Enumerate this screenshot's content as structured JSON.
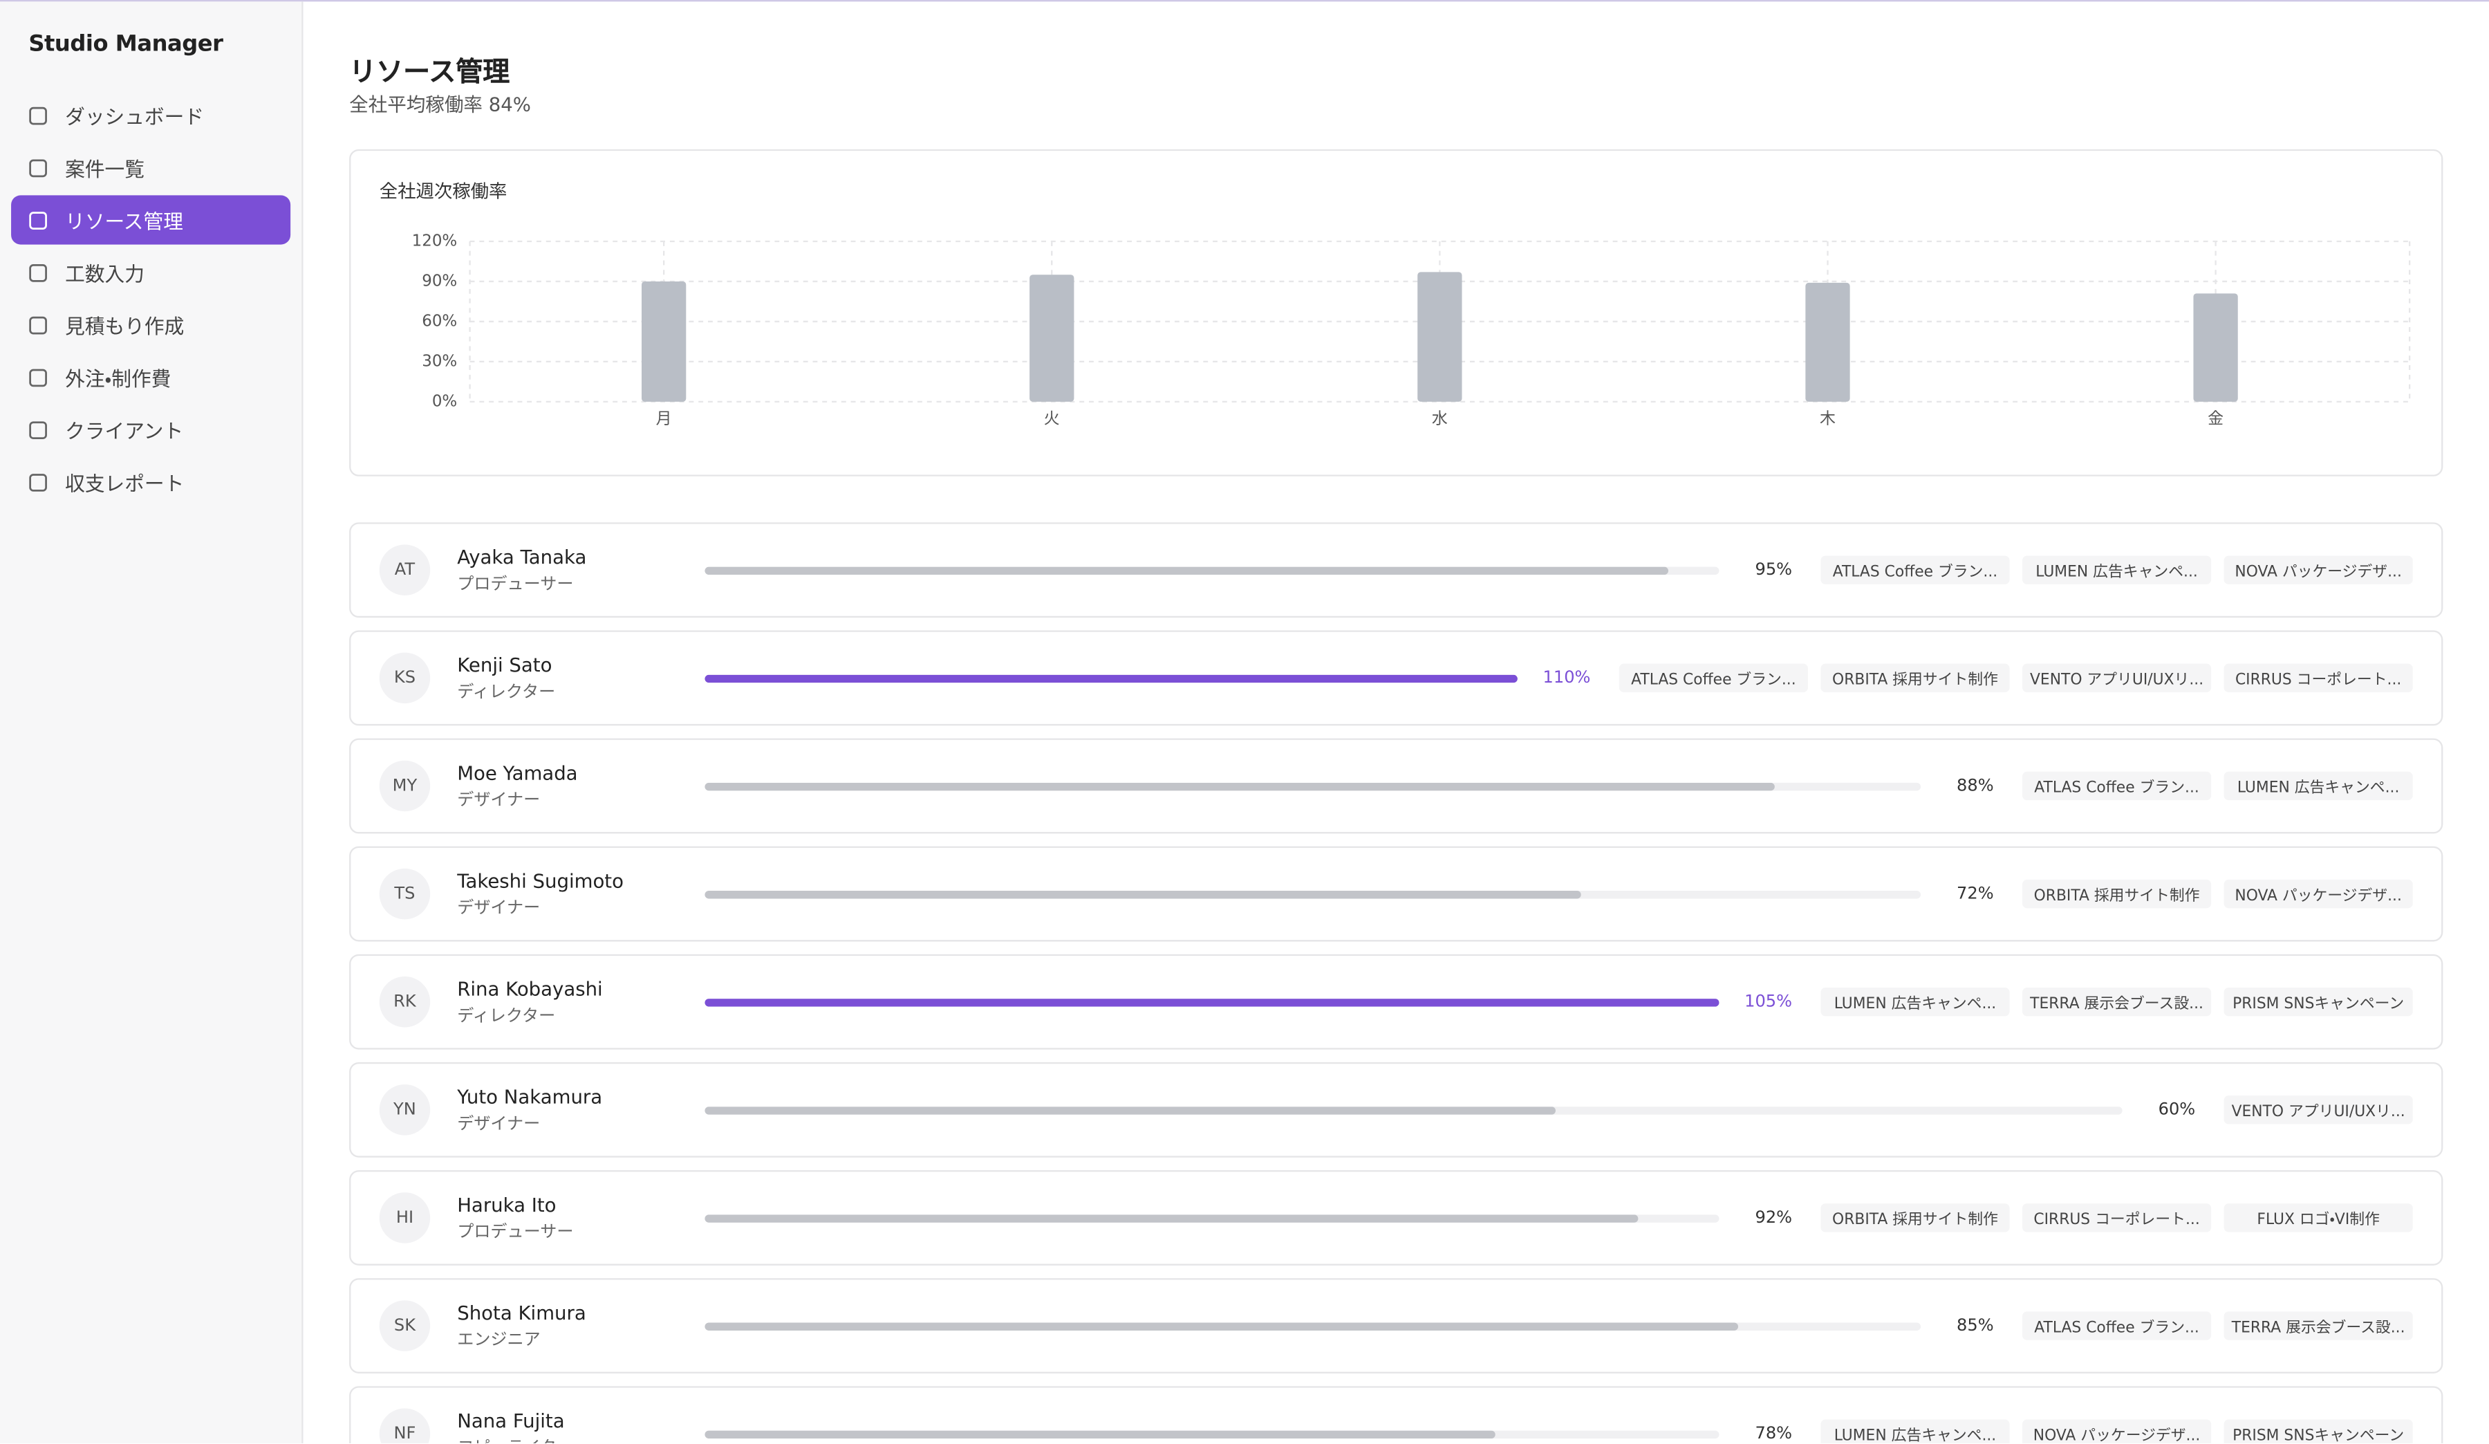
{
  "sidebar": {
    "app_title": "Studio Manager",
    "nav": [
      "ダッシュボード",
      "案件一覧",
      "リソース管理",
      "工数入力",
      "見積もり作成",
      "外注・制作費",
      "クライアント",
      "収支レポート"
    ],
    "active_nav": 2
  },
  "header": {
    "title": "リソース管理",
    "subtitle": "全社平均稼働率 84%"
  },
  "chart_data": {
    "type": "bar",
    "title": "全社週次稼働率",
    "categories": [
      "月",
      "火",
      "水",
      "木",
      "金"
    ],
    "values": [
      90,
      95,
      97,
      89,
      81
    ],
    "color": "#b9bec6",
    "ylim": [
      0,
      120
    ],
    "yticks": [
      {
        "value": 0,
        "label": "0%"
      },
      {
        "value": 30,
        "label": "30%"
      },
      {
        "value": 60,
        "label": "60%"
      },
      {
        "value": 90,
        "label": "90%"
      },
      {
        "value": 120,
        "label": "120%"
      }
    ],
    "grid": true
  },
  "members": [
    {
      "initials": "AT",
      "name": "Ayaka Tanaka",
      "role": "プロデューサー",
      "utilization": 95,
      "utilization_label": "95%",
      "projects": [
        "ATLAS Coffee ブラン...",
        "LUMEN 広告キャンペ...",
        "NOVA パッケージデザ..."
      ]
    },
    {
      "initials": "KS",
      "name": "Kenji Sato",
      "role": "ディレクター",
      "utilization": 110,
      "utilization_label": "110%",
      "projects": [
        "ATLAS Coffee ブラン...",
        "ORBITA 採用サイト制作",
        "VENTO アプリUI/UXリ...",
        "CIRRUS コーポレート..."
      ]
    },
    {
      "initials": "MY",
      "name": "Moe Yamada",
      "role": "デザイナー",
      "utilization": 88,
      "utilization_label": "88%",
      "projects": [
        "ATLAS Coffee ブラン...",
        "LUMEN 広告キャンペ..."
      ]
    },
    {
      "initials": "TS",
      "name": "Takeshi Sugimoto",
      "role": "デザイナー",
      "utilization": 72,
      "utilization_label": "72%",
      "projects": [
        "ORBITA 採用サイト制作",
        "NOVA パッケージデザ..."
      ]
    },
    {
      "initials": "RK",
      "name": "Rina Kobayashi",
      "role": "ディレクター",
      "utilization": 105,
      "utilization_label": "105%",
      "projects": [
        "LUMEN 広告キャンペ...",
        "TERRA 展示会ブース設...",
        "PRISM SNSキャンペーン"
      ]
    },
    {
      "initials": "YN",
      "name": "Yuto Nakamura",
      "role": "デザイナー",
      "utilization": 60,
      "utilization_label": "60%",
      "projects": [
        "VENTO アプリUI/UXリ..."
      ]
    },
    {
      "initials": "HI",
      "name": "Haruka Ito",
      "role": "プロデューサー",
      "utilization": 92,
      "utilization_label": "92%",
      "projects": [
        "ORBITA 採用サイト制作",
        "CIRRUS コーポレート...",
        "FLUX ロゴ・VI制作"
      ]
    },
    {
      "initials": "SK",
      "name": "Shota Kimura",
      "role": "エンジニア",
      "utilization": 85,
      "utilization_label": "85%",
      "projects": [
        "ATLAS Coffee ブラン...",
        "TERRA 展示会ブース設..."
      ]
    },
    {
      "initials": "NF",
      "name": "Nana Fujita",
      "role": "コピーライター",
      "utilization": 78,
      "utilization_label": "78%",
      "projects": [
        "LUMEN 広告キャンペ...",
        "NOVA パッケージデザ...",
        "PRISM SNSキャンペーン"
      ]
    }
  ]
}
